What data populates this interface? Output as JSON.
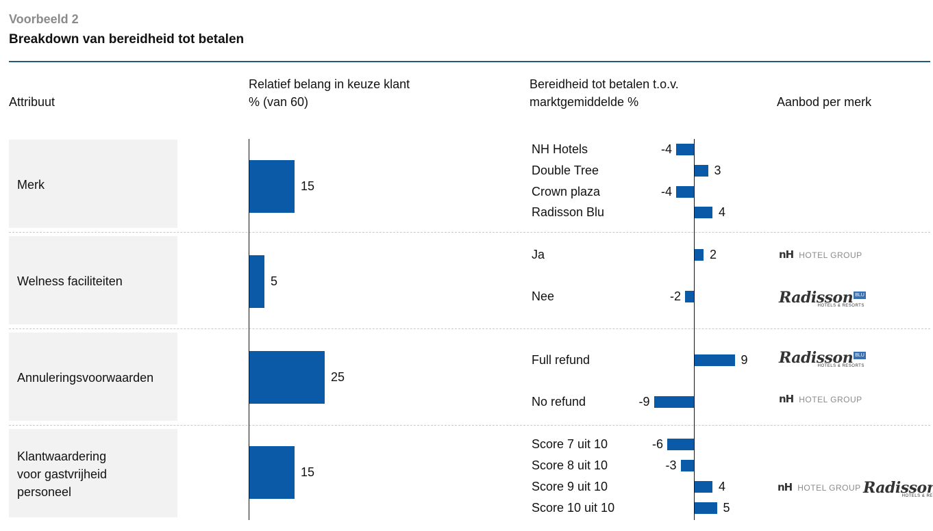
{
  "header": {
    "kicker": "Voorbeeld 2",
    "title": "Breakdown van bereidheid tot betalen"
  },
  "columns": {
    "attribute": "Attribuut",
    "importance_line1": "Relatief belang in keuze klant",
    "importance_line2": "% (van 60)",
    "wtp_line1": "Bereidheid tot betalen t.o.v.",
    "wtp_line2": "marktgemiddelde %",
    "offer": "Aanbod per merk"
  },
  "colors": {
    "bar": "#0b5aa8",
    "rule": "#1f5a7a",
    "row_bg": "#f2f2f2"
  },
  "chart_data": [
    {
      "type": "bar",
      "orientation": "horizontal",
      "title": "Relatief belang in keuze klant % (van 60)",
      "categories": [
        "Merk",
        "Welness faciliteiten",
        "Annuleringsvoorwaarden",
        "Klantwaardering voor gastvrijheid personeel"
      ],
      "values": [
        15,
        5,
        25,
        15
      ],
      "value_labels": [
        "15",
        "5",
        "25",
        "15"
      ]
    },
    {
      "type": "bar",
      "orientation": "horizontal",
      "title": "Bereidheid tot betalen t.o.v. marktgemiddelde %",
      "groups": [
        {
          "attribute": "Merk",
          "levels": [
            "NH Hotels",
            "Double Tree",
            "Crown plaza",
            "Radisson Blu"
          ],
          "values": [
            -4,
            3,
            -4,
            4
          ],
          "value_labels": [
            "-4",
            "3",
            "-4",
            "4"
          ]
        },
        {
          "attribute": "Welness faciliteiten",
          "levels": [
            "Ja",
            "Nee"
          ],
          "values": [
            2,
            -2
          ],
          "value_labels": [
            "2",
            "-2"
          ]
        },
        {
          "attribute": "Annuleringsvoorwaarden",
          "levels": [
            "Full refund",
            "No refund"
          ],
          "values": [
            9,
            -9
          ],
          "value_labels": [
            "9",
            "-9"
          ]
        },
        {
          "attribute": "Klantwaardering voor gastvrijheid personeel",
          "levels": [
            "Score 7 uit 10",
            "Score 8 uit 10",
            "Score 9 uit 10",
            "Score 10 uit 10"
          ],
          "values": [
            -6,
            -3,
            4,
            5
          ],
          "value_labels": [
            "-6",
            "-3",
            "4",
            "5"
          ]
        }
      ]
    }
  ],
  "rows": [
    {
      "label_lines": [
        "Merk"
      ]
    },
    {
      "label_lines": [
        "Welness faciliteiten"
      ]
    },
    {
      "label_lines": [
        "Annuleringsvoorwaarden"
      ]
    },
    {
      "label_lines": [
        "Klantwaardering",
        "voor gastvrijheid",
        "personeel"
      ]
    }
  ],
  "logos": {
    "nh": {
      "mark": "nH",
      "text": "HOTEL GROUP"
    },
    "radisson": {
      "mark": "Radisson",
      "badge": "BLU",
      "sub": "HOTELS & RESORTS"
    }
  }
}
